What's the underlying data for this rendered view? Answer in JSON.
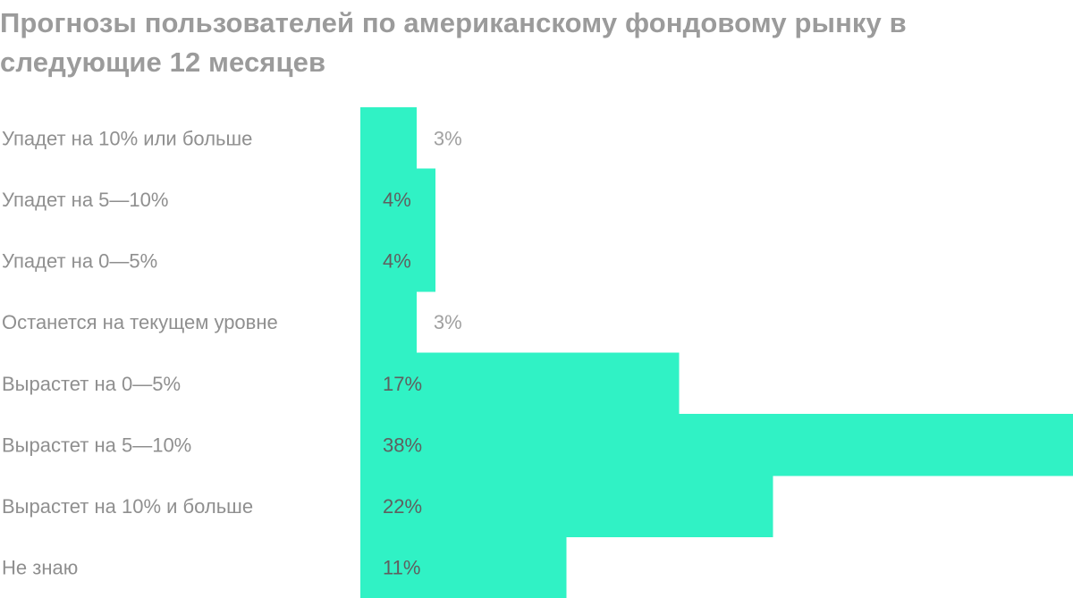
{
  "chart_data": {
    "type": "bar",
    "orientation": "horizontal",
    "title": "Прогнозы пользователей по американскому фондовому рынку в следующие 12 месяцев",
    "categories": [
      "Упадет на 10% или больше",
      "Упадет на 5—10%",
      "Упадет на 0—5%",
      "Останется на текущем уровне",
      "Вырастет на 0—5%",
      "Вырастет на 5—10%",
      "Вырастет на 10% и больше",
      "Не знаю"
    ],
    "values": [
      3,
      4,
      4,
      3,
      17,
      38,
      22,
      11
    ],
    "value_labels": [
      "3%",
      "4%",
      "4%",
      "3%",
      "17%",
      "38%",
      "22%",
      "11%"
    ],
    "unit": "%",
    "xlim": [
      0,
      38
    ],
    "grid": false,
    "legend": "none",
    "colors": {
      "bar": "#30f2c5",
      "title": "#9b9b9b",
      "category_text": "#8f8f8f",
      "value_text_inside": "#5f5f5f",
      "value_text_outside": "#a0a0a0"
    }
  }
}
